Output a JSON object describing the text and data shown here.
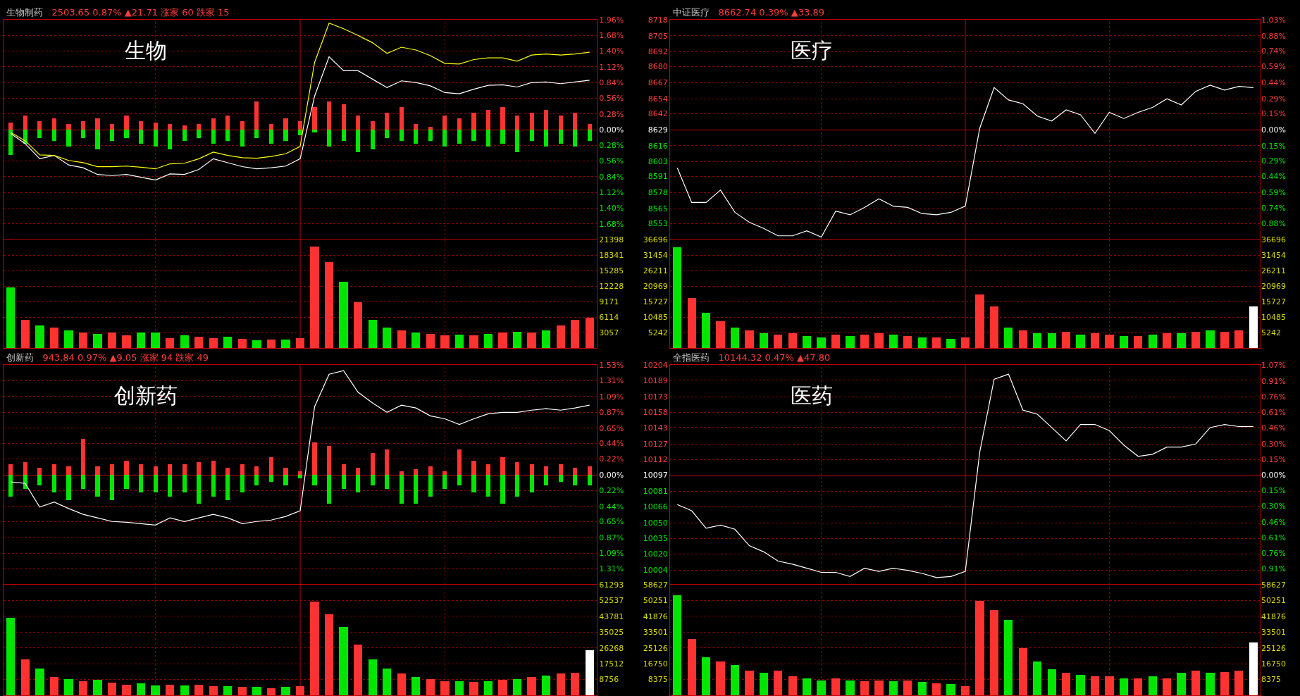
{
  "chart_data": [
    {
      "type": "line",
      "title": "生物制药",
      "subtitle": "2503.65 0.87% ▲21.71 涨家 60 跌家 15",
      "annotations": [
        "生物"
      ],
      "categories": [
        null,
        null,
        null,
        null,
        null,
        null,
        null,
        null,
        null,
        null,
        null,
        null,
        null,
        null,
        null,
        null,
        null,
        null,
        null,
        null,
        null,
        null,
        null,
        null,
        null,
        null,
        null,
        null,
        null,
        null,
        null,
        null,
        null,
        null,
        null,
        null,
        null,
        null,
        null,
        null,
        null
      ],
      "ylim": [
        -1.96,
        1.96
      ],
      "yticks": [
        {
          "value": 1.96,
          "label": "1.96%"
        },
        {
          "value": 1.68,
          "label": "1.68%"
        },
        {
          "value": 1.4,
          "label": "1.40%"
        },
        {
          "value": 1.12,
          "label": "1.12%"
        },
        {
          "value": 0.84,
          "label": "0.84%"
        },
        {
          "value": 0.56,
          "label": "0.56%"
        },
        {
          "value": 0.28,
          "label": "0.28%"
        },
        {
          "value": 0,
          "label": "0.00%"
        },
        {
          "value": -0.28,
          "label": "0.28%"
        },
        {
          "value": -0.56,
          "label": "0.56%"
        },
        {
          "value": -0.84,
          "label": "0.84%"
        },
        {
          "value": -1.12,
          "label": "1.12%"
        },
        {
          "value": -1.4,
          "label": "1.40%"
        },
        {
          "value": -1.68,
          "label": "1.68%"
        }
      ],
      "grid": true,
      "tick_labels": "y",
      "stacked": true,
      "series": [
        {
          "type": "bar",
          "color": "#ff3232",
          "values": [
            0.12,
            0.25,
            0.15,
            0.2,
            0.1,
            0.15,
            0.2,
            0.1,
            0.25,
            0.15,
            0.12,
            0.1,
            0.08,
            0.1,
            0.2,
            0.25,
            0.15,
            0.5,
            0.1,
            0.2,
            0.15,
            0.4,
            0.5,
            0.45,
            0.25,
            0.15,
            0.3,
            0.4,
            0.1,
            0.05,
            0.25,
            0.2,
            0.3,
            0.35,
            0.4,
            0.25,
            0.3,
            0.35,
            0.25,
            0.3,
            0.1
          ]
        },
        {
          "type": "bar",
          "color": "#00e600",
          "values": [
            -0.45,
            -0.25,
            -0.15,
            -0.2,
            -0.3,
            -0.15,
            -0.35,
            -0.2,
            -0.15,
            -0.25,
            -0.3,
            -0.35,
            -0.2,
            -0.15,
            -0.25,
            -0.2,
            -0.3,
            -0.15,
            -0.25,
            -0.2,
            -0.1,
            -0.05,
            -0.3,
            -0.2,
            -0.4,
            -0.35,
            -0.15,
            -0.2,
            -0.25,
            -0.2,
            -0.3,
            -0.25,
            -0.2,
            -0.3,
            -0.25,
            -0.4,
            -0.2,
            -0.3,
            -0.25,
            -0.3,
            -0.2
          ]
        },
        {
          "color": "#ffffff",
          "values": [
            -0.07,
            -0.25,
            -0.52,
            -0.46,
            -0.63,
            -0.68,
            -0.8,
            -0.82,
            -0.8,
            -0.85,
            -0.9,
            -0.79,
            -0.8,
            -0.71,
            -0.52,
            -0.59,
            -0.66,
            -0.7,
            -0.68,
            -0.65,
            -0.52,
            0.6,
            1.3,
            1.05,
            1.05,
            0.9,
            0.75,
            0.87,
            0.84,
            0.78,
            0.66,
            0.64,
            0.72,
            0.79,
            0.8,
            0.76,
            0.84,
            0.85,
            0.82,
            0.85,
            0.88
          ]
        },
        {
          "color": "#ffff00",
          "values": [
            -0.05,
            -0.2,
            -0.45,
            -0.46,
            -0.55,
            -0.59,
            -0.66,
            -0.66,
            -0.65,
            -0.67,
            -0.7,
            -0.61,
            -0.6,
            -0.52,
            -0.4,
            -0.46,
            -0.5,
            -0.51,
            -0.48,
            -0.43,
            -0.3,
            1.2,
            1.9,
            1.8,
            1.68,
            1.55,
            1.36,
            1.47,
            1.42,
            1.32,
            1.18,
            1.17,
            1.25,
            1.28,
            1.28,
            1.22,
            1.33,
            1.35,
            1.33,
            1.35,
            1.38
          ]
        }
      ]
    },
    {
      "type": "bar",
      "categories": [
        null,
        null,
        null,
        null,
        null,
        null,
        null,
        null,
        null,
        null,
        null,
        null,
        null,
        null,
        null,
        null,
        null,
        null,
        null,
        null,
        null,
        null,
        null,
        null,
        null,
        null,
        null,
        null,
        null,
        null,
        null,
        null,
        null,
        null,
        null,
        null,
        null,
        null,
        null,
        null,
        null
      ],
      "ylim": [
        0,
        21398
      ],
      "yticks": [
        21398,
        18341,
        15285,
        12228,
        9171,
        6114,
        3057
      ],
      "grid": true,
      "tick_labels": "y",
      "values": [
        12000,
        5500,
        4500,
        4000,
        3500,
        3000,
        2800,
        3000,
        2500,
        3000,
        3000,
        2000,
        2500,
        2200,
        2000,
        2200,
        1800,
        1500,
        1600,
        1700,
        2000,
        20000,
        17000,
        13000,
        9000,
        5500,
        4000,
        3500,
        3000,
        2800,
        2500,
        2600,
        2500,
        2800,
        3000,
        3200,
        3000,
        3500,
        4500,
        5500,
        6000
      ],
      "colors": [
        "#00e600",
        "#ff3232",
        "#00e600",
        "#ff3232",
        "#00e600",
        "#ff3232",
        "#00e600",
        "#ff3232",
        "#ff3232",
        "#00e600",
        "#00e600",
        "#ff3232",
        "#00e600",
        "#ff3232",
        "#ff3232",
        "#00e600",
        "#ff3232",
        "#00e600",
        "#ff3232",
        "#00e600",
        "#ff3232",
        "#ff3232",
        "#ff3232",
        "#00e600",
        "#ff3232",
        "#00e600",
        "#00e600",
        "#ff3232",
        "#00e600",
        "#ff3232",
        "#ff3232",
        "#00e600",
        "#ff3232",
        "#00e600",
        "#ff3232",
        "#00e600",
        "#ff3232",
        "#00e600",
        "#ff3232",
        "#ff3232",
        "#ff3232"
      ]
    },
    {
      "type": "line",
      "title": "中证医疗",
      "subtitle": "8662.74 0.39% ▲33.89",
      "annotations": [
        "医疗"
      ],
      "categories": [
        null,
        null,
        null,
        null,
        null,
        null,
        null,
        null,
        null,
        null,
        null,
        null,
        null,
        null,
        null,
        null,
        null,
        null,
        null,
        null,
        null,
        null,
        null,
        null,
        null,
        null,
        null,
        null,
        null,
        null,
        null,
        null,
        null,
        null,
        null,
        null,
        null,
        null,
        null,
        null,
        null
      ],
      "ylim": [
        8540,
        8718
      ],
      "yticks": [
        8718,
        8705,
        8692,
        8680,
        8667,
        8654,
        8642,
        8629,
        8616,
        8603,
        8591,
        8578,
        8565,
        8553
      ],
      "y2lim": [
        -1.03,
        1.03
      ],
      "y2ticks": [
        {
          "value": 1.03,
          "label": "1.03%"
        },
        {
          "value": 0.88,
          "label": "0.88%"
        },
        {
          "value": 0.736,
          "label": "0.74%"
        },
        {
          "value": 0.59,
          "label": "0.59%"
        },
        {
          "value": 0.44,
          "label": "0.44%"
        },
        {
          "value": 0.29,
          "label": "0.29%"
        },
        {
          "value": 0.15,
          "label": "0.15%"
        },
        {
          "value": 0,
          "label": "0.00%"
        },
        {
          "value": -0.15,
          "label": "0.15%"
        },
        {
          "value": -0.29,
          "label": "0.29%"
        },
        {
          "value": -0.44,
          "label": "0.44%"
        },
        {
          "value": -0.59,
          "label": "0.59%"
        },
        {
          "value": -0.736,
          "label": "0.74%"
        },
        {
          "value": -0.88,
          "label": "0.88%"
        }
      ],
      "grid": true,
      "tick_labels": "y",
      "series": [
        {
          "color": "#ffffff",
          "values": [
            8598,
            8570,
            8570,
            8580,
            8562,
            8554,
            8549,
            8543,
            8543,
            8547,
            8542,
            8563,
            8560,
            8566,
            8573,
            8567,
            8566,
            8561,
            8560,
            8562,
            8567,
            8630,
            8663,
            8653,
            8650,
            8640,
            8636,
            8645,
            8641,
            8626,
            8643,
            8638,
            8643,
            8647,
            8654,
            8649,
            8660,
            8665,
            8661,
            8664,
            8663
          ]
        }
      ]
    },
    {
      "type": "bar",
      "categories": [
        null,
        null,
        null,
        null,
        null,
        null,
        null,
        null,
        null,
        null,
        null,
        null,
        null,
        null,
        null,
        null,
        null,
        null,
        null,
        null,
        null,
        null,
        null,
        null,
        null,
        null,
        null,
        null,
        null,
        null,
        null,
        null,
        null,
        null,
        null,
        null,
        null,
        null,
        null,
        null,
        null
      ],
      "ylim": [
        0,
        36696
      ],
      "yticks": [
        36696,
        31454,
        26211,
        20969,
        15727,
        10485,
        5242
      ],
      "y2lim": [
        0,
        36696
      ],
      "y2ticks": [
        36696,
        31454,
        26211,
        20969,
        15727,
        10485,
        5242
      ],
      "grid": true,
      "tick_labels": "y",
      "values": [
        34000,
        17000,
        12000,
        9000,
        7000,
        6000,
        5000,
        4500,
        5000,
        4000,
        3500,
        4500,
        4000,
        4500,
        5000,
        4500,
        4000,
        3500,
        3500,
        3000,
        3500,
        18000,
        14000,
        7000,
        6000,
        5000,
        5000,
        5500,
        4500,
        5000,
        4500,
        4000,
        4000,
        4500,
        5000,
        5000,
        5500,
        6000,
        5500,
        6000,
        14000
      ],
      "colors": [
        "#00e600",
        "#ff3232",
        "#00e600",
        "#ff3232",
        "#00e600",
        "#ff3232",
        "#00e600",
        "#ff3232",
        "#ff3232",
        "#00e600",
        "#00e600",
        "#ff3232",
        "#00e600",
        "#ff3232",
        "#ff3232",
        "#00e600",
        "#ff3232",
        "#00e600",
        "#ff3232",
        "#00e600",
        "#ff3232",
        "#ff3232",
        "#ff3232",
        "#00e600",
        "#ff3232",
        "#00e600",
        "#00e600",
        "#ff3232",
        "#00e600",
        "#ff3232",
        "#ff3232",
        "#00e600",
        "#ff3232",
        "#00e600",
        "#ff3232",
        "#00e600",
        "#ff3232",
        "#00e600",
        "#ff3232",
        "#ff3232",
        "#ffffff"
      ]
    },
    {
      "type": "line",
      "title": "创新药",
      "subtitle": "943.84 0.97% ▲9.05 涨家 94 跌家 49",
      "annotations": [
        "创新药"
      ],
      "categories": [
        null,
        null,
        null,
        null,
        null,
        null,
        null,
        null,
        null,
        null,
        null,
        null,
        null,
        null,
        null,
        null,
        null,
        null,
        null,
        null,
        null,
        null,
        null,
        null,
        null,
        null,
        null,
        null,
        null,
        null,
        null,
        null,
        null,
        null,
        null,
        null,
        null,
        null,
        null,
        null,
        null
      ],
      "ylim": [
        -1.53,
        1.53
      ],
      "yticks": [
        {
          "value": 1.53,
          "label": "1.53%"
        },
        {
          "value": 1.31,
          "label": "1.31%"
        },
        {
          "value": 1.09,
          "label": "1.09%"
        },
        {
          "value": 0.87,
          "label": "0.87%"
        },
        {
          "value": 0.65,
          "label": "0.65%"
        },
        {
          "value": 0.44,
          "label": "0.44%"
        },
        {
          "value": 0.22,
          "label": "0.22%"
        },
        {
          "value": 0,
          "label": "0.00%"
        },
        {
          "value": -0.22,
          "label": "0.22%"
        },
        {
          "value": -0.44,
          "label": "0.44%"
        },
        {
          "value": -0.65,
          "label": "0.65%"
        },
        {
          "value": -0.87,
          "label": "0.87%"
        },
        {
          "value": -1.09,
          "label": "1.09%"
        },
        {
          "value": -1.31,
          "label": "1.31%"
        }
      ],
      "grid": true,
      "tick_labels": "y",
      "stacked": true,
      "series": [
        {
          "type": "bar",
          "color": "#ff3232",
          "values": [
            0.15,
            0.18,
            0.1,
            0.15,
            0.12,
            0.5,
            0.12,
            0.15,
            0.2,
            0.15,
            0.12,
            0.15,
            0.15,
            0.18,
            0.2,
            0.1,
            0.15,
            0.12,
            0.25,
            0.1,
            0.05,
            0.45,
            0.4,
            0.15,
            0.1,
            0.3,
            0.35,
            0.05,
            0.08,
            0.12,
            0.05,
            0.35,
            0.2,
            0.15,
            0.25,
            0.18,
            0.15,
            0.12,
            0.15,
            0.1,
            0.12
          ]
        },
        {
          "type": "bar",
          "color": "#00e600",
          "values": [
            -0.3,
            -0.2,
            -0.15,
            -0.25,
            -0.35,
            -0.2,
            -0.3,
            -0.35,
            -0.2,
            -0.25,
            -0.25,
            -0.3,
            -0.25,
            -0.4,
            -0.3,
            -0.35,
            -0.25,
            -0.15,
            -0.1,
            -0.15,
            -0.05,
            -0.15,
            -0.4,
            -0.2,
            -0.25,
            -0.15,
            -0.2,
            -0.4,
            -0.4,
            -0.3,
            -0.2,
            -0.15,
            -0.25,
            -0.3,
            -0.4,
            -0.3,
            -0.25,
            -0.15,
            -0.1,
            -0.15,
            -0.15
          ]
        },
        {
          "color": "#ffffff",
          "values": [
            -0.1,
            -0.12,
            -0.45,
            -0.38,
            -0.47,
            -0.55,
            -0.6,
            -0.65,
            -0.66,
            -0.68,
            -0.7,
            -0.6,
            -0.65,
            -0.6,
            -0.55,
            -0.6,
            -0.68,
            -0.65,
            -0.63,
            -0.58,
            -0.5,
            0.95,
            1.4,
            1.45,
            1.15,
            1.0,
            0.87,
            0.97,
            0.93,
            0.82,
            0.78,
            0.7,
            0.78,
            0.85,
            0.87,
            0.87,
            0.9,
            0.92,
            0.9,
            0.93,
            0.97
          ]
        }
      ]
    },
    {
      "type": "bar",
      "categories": [
        null,
        null,
        null,
        null,
        null,
        null,
        null,
        null,
        null,
        null,
        null,
        null,
        null,
        null,
        null,
        null,
        null,
        null,
        null,
        null,
        null,
        null,
        null,
        null,
        null,
        null,
        null,
        null,
        null,
        null,
        null,
        null,
        null,
        null,
        null,
        null,
        null,
        null,
        null,
        null,
        null
      ],
      "ylim": [
        0,
        61293
      ],
      "yticks": [
        61293,
        52537,
        43781,
        35025,
        26268,
        17512,
        8756
      ],
      "grid": true,
      "tick_labels": "y",
      "values": [
        43000,
        20000,
        15000,
        10000,
        9000,
        8000,
        8500,
        7000,
        6000,
        6500,
        5500,
        6000,
        5500,
        6000,
        5000,
        5000,
        4500,
        4500,
        4000,
        4500,
        5000,
        52000,
        45000,
        38000,
        28000,
        20000,
        15000,
        12000,
        10000,
        9000,
        8000,
        8000,
        7500,
        8000,
        8500,
        9000,
        10000,
        11000,
        12000,
        12500,
        25000
      ],
      "colors": [
        "#00e600",
        "#ff3232",
        "#00e600",
        "#ff3232",
        "#00e600",
        "#ff3232",
        "#00e600",
        "#ff3232",
        "#ff3232",
        "#00e600",
        "#00e600",
        "#ff3232",
        "#00e600",
        "#ff3232",
        "#ff3232",
        "#00e600",
        "#ff3232",
        "#00e600",
        "#ff3232",
        "#00e600",
        "#ff3232",
        "#ff3232",
        "#ff3232",
        "#00e600",
        "#ff3232",
        "#00e600",
        "#00e600",
        "#ff3232",
        "#00e600",
        "#ff3232",
        "#ff3232",
        "#00e600",
        "#ff3232",
        "#00e600",
        "#ff3232",
        "#00e600",
        "#ff3232",
        "#00e600",
        "#ff3232",
        "#ff3232",
        "#ffffff"
      ]
    },
    {
      "type": "line",
      "title": "全指医药",
      "subtitle": "10144.32 0.47% ▲47.80",
      "annotations": [
        "医药"
      ],
      "categories": [
        null,
        null,
        null,
        null,
        null,
        null,
        null,
        null,
        null,
        null,
        null,
        null,
        null,
        null,
        null,
        null,
        null,
        null,
        null,
        null,
        null,
        null,
        null,
        null,
        null,
        null,
        null,
        null,
        null,
        null,
        null,
        null,
        null,
        null,
        null,
        null,
        null,
        null,
        null,
        null,
        null
      ],
      "ylim": [
        9990,
        10204
      ],
      "yticks": [
        10204,
        10189,
        10173,
        10158,
        10143,
        10127,
        10112,
        10097,
        10081,
        10066,
        10050,
        10035,
        10020,
        10004
      ],
      "y2lim": [
        -1.07,
        1.07
      ],
      "y2ticks": [
        {
          "value": 1.07,
          "label": "1.07%"
        },
        {
          "value": 0.91,
          "label": "0.91%"
        },
        {
          "value": 0.76,
          "label": "0.76%"
        },
        {
          "value": 0.61,
          "label": "0.61%"
        },
        {
          "value": 0.46,
          "label": "0.46%"
        },
        {
          "value": 0.3,
          "label": "0.30%"
        },
        {
          "value": 0.15,
          "label": "0.15%"
        },
        {
          "value": 0,
          "label": "0.00%"
        },
        {
          "value": -0.15,
          "label": "0.15%"
        },
        {
          "value": -0.3,
          "label": "0.30%"
        },
        {
          "value": -0.46,
          "label": "0.46%"
        },
        {
          "value": -0.61,
          "label": "0.61%"
        },
        {
          "value": -0.76,
          "label": "0.76%"
        },
        {
          "value": -0.91,
          "label": "0.91%"
        }
      ],
      "grid": true,
      "tick_labels": "y",
      "series": [
        {
          "color": "#ffffff",
          "values": [
            10068,
            10062,
            10045,
            10048,
            10044,
            10028,
            10022,
            10013,
            10010,
            10006,
            10002,
            10002,
            9998,
            10006,
            10003,
            10006,
            10004,
            10001,
            9997,
            9998,
            10003,
            10119,
            10190,
            10195,
            10160,
            10156,
            10143,
            10130,
            10146,
            10146,
            10140,
            10126,
            10115,
            10117,
            10124,
            10124,
            10127,
            10143,
            10146,
            10144,
            10144
          ]
        }
      ]
    },
    {
      "type": "bar",
      "categories": [
        null,
        null,
        null,
        null,
        null,
        null,
        null,
        null,
        null,
        null,
        null,
        null,
        null,
        null,
        null,
        null,
        null,
        null,
        null,
        null,
        null,
        null,
        null,
        null,
        null,
        null,
        null,
        null,
        null,
        null,
        null,
        null,
        null,
        null,
        null,
        null,
        null,
        null,
        null,
        null,
        null
      ],
      "ylim": [
        0,
        58627
      ],
      "yticks": [
        58627,
        50251,
        41876,
        33501,
        25126,
        16750,
        8375
      ],
      "y2lim": [
        0,
        58627
      ],
      "y2ticks": [
        58627,
        50251,
        41876,
        33501,
        25126,
        16750,
        8375
      ],
      "grid": true,
      "tick_labels": "y",
      "values": [
        53000,
        30000,
        20000,
        18000,
        16000,
        13000,
        12000,
        13000,
        10000,
        9000,
        8000,
        9000,
        8000,
        7500,
        8000,
        7500,
        8000,
        7000,
        6500,
        6000,
        5000,
        50000,
        45000,
        40000,
        25000,
        18000,
        14000,
        12000,
        11000,
        10000,
        10000,
        9000,
        9000,
        10000,
        9000,
        12000,
        13000,
        12000,
        12500,
        13000,
        28000
      ],
      "colors": [
        "#00e600",
        "#ff3232",
        "#00e600",
        "#ff3232",
        "#00e600",
        "#ff3232",
        "#00e600",
        "#ff3232",
        "#ff3232",
        "#00e600",
        "#00e600",
        "#ff3232",
        "#00e600",
        "#ff3232",
        "#ff3232",
        "#00e600",
        "#ff3232",
        "#00e600",
        "#ff3232",
        "#00e600",
        "#ff3232",
        "#ff3232",
        "#ff3232",
        "#00e600",
        "#ff3232",
        "#00e600",
        "#00e600",
        "#ff3232",
        "#00e600",
        "#ff3232",
        "#ff3232",
        "#00e600",
        "#ff3232",
        "#00e600",
        "#ff3232",
        "#00e600",
        "#ff3232",
        "#00e600",
        "#ff3232",
        "#ff3232",
        "#ffffff"
      ]
    }
  ]
}
